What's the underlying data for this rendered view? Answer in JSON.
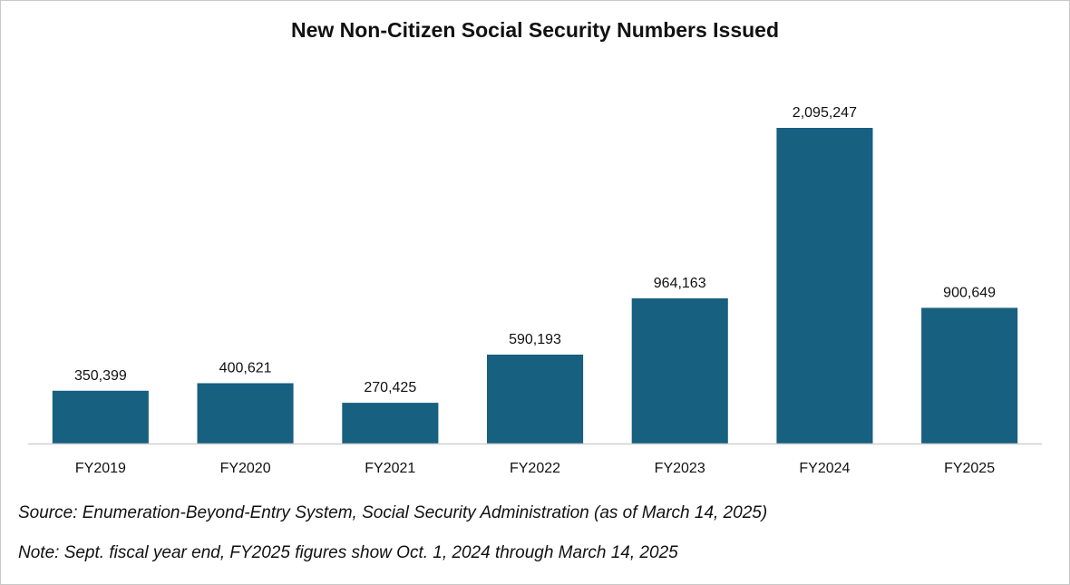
{
  "colors": {
    "bar": "#17607f",
    "axis": "#d0d0d0",
    "text": "#111111"
  },
  "chart_data": {
    "type": "bar",
    "title": "New Non-Citizen Social Security Numbers Issued",
    "categories": [
      "FY2019",
      "FY2020",
      "FY2021",
      "FY2022",
      "FY2023",
      "FY2024",
      "FY2025"
    ],
    "values": [
      350399,
      400621,
      270425,
      590193,
      964163,
      2095247,
      900649
    ],
    "value_labels": [
      "350,399",
      "400,621",
      "270,425",
      "590,193",
      "964,163",
      "2,095,247",
      "900,649"
    ],
    "xlabel": "",
    "ylabel": "",
    "ylim": [
      0,
      2100000
    ],
    "grid": false,
    "legend": "none"
  },
  "notes": {
    "source": "Source: Enumeration-Beyond-Entry System, Social Security Administration (as of March 14, 2025)",
    "fiscal": "Note: Sept. fiscal year end, FY2025 figures show Oct. 1, 2024 through March 14, 2025"
  }
}
